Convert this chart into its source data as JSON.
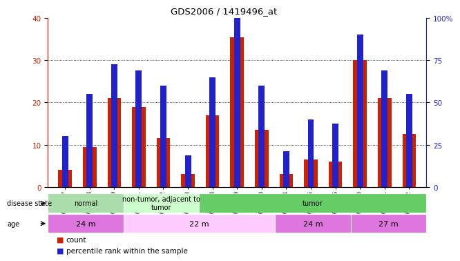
{
  "title": "GDS2006 / 1419496_at",
  "samples": [
    "GSM37397",
    "GSM37398",
    "GSM37399",
    "GSM37391",
    "GSM37392",
    "GSM37393",
    "GSM37388",
    "GSM37389",
    "GSM37390",
    "GSM37394",
    "GSM37395",
    "GSM37396",
    "GSM37400",
    "GSM37401",
    "GSM37402"
  ],
  "count": [
    4,
    9.5,
    21,
    19,
    11.5,
    3,
    17,
    35.5,
    13.5,
    3,
    6.5,
    6,
    30,
    21,
    12.5
  ],
  "percentile": [
    12,
    22,
    29,
    27.5,
    24,
    7.5,
    26,
    46,
    24,
    8.5,
    16,
    15,
    36,
    27.5,
    22
  ],
  "ylim_left": [
    0,
    40
  ],
  "ylim_right": [
    0,
    100
  ],
  "yticks_left": [
    0,
    10,
    20,
    30,
    40
  ],
  "yticks_right": [
    0,
    25,
    50,
    75,
    100
  ],
  "bar_color": "#cc2200",
  "percentile_color": "#2222cc",
  "bar_width": 0.55,
  "percentile_bar_width": 0.25,
  "disease_state_groups": [
    {
      "label": "normal",
      "start": 0,
      "end": 3,
      "color": "#aaddaa"
    },
    {
      "label": "non-tumor, adjacent to\ntumor",
      "start": 3,
      "end": 6,
      "color": "#ccffcc"
    },
    {
      "label": "tumor",
      "start": 6,
      "end": 15,
      "color": "#66cc66"
    }
  ],
  "age_groups": [
    {
      "label": "24 m",
      "start": 0,
      "end": 3,
      "color": "#dd77dd"
    },
    {
      "label": "22 m",
      "start": 3,
      "end": 9,
      "color": "#ffccff"
    },
    {
      "label": "24 m",
      "start": 9,
      "end": 12,
      "color": "#dd77dd"
    },
    {
      "label": "27 m",
      "start": 12,
      "end": 15,
      "color": "#dd77dd"
    }
  ],
  "grid_color": "#000000",
  "tick_label_color_left": "#cc2200",
  "tick_label_color_right": "#2222cc",
  "bg_color": "#ffffff"
}
